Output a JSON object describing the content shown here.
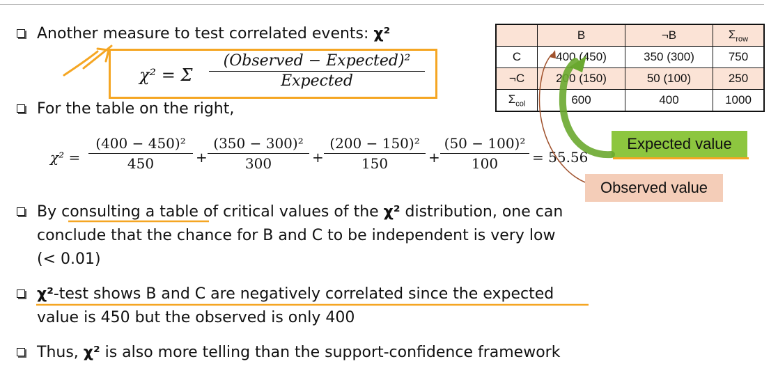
{
  "bullets": {
    "b1": {
      "text": "Another measure to test correlated events: ",
      "sym": "χ²"
    },
    "b2": {
      "text": "For the table on the right,"
    },
    "b3": {
      "line1_pre": "By consulting a table of critical values of the ",
      "sym": "χ²",
      "line1_post": " distribution, one can",
      "line2": "conclude that the chance for B and C  to be independent is very low",
      "line3": "(< 0.01)"
    },
    "b4": {
      "sym": "χ²",
      "line1": "-test shows B and C are negatively correlated since the expected",
      "line2": "value is 450 but the observed is only 400"
    },
    "b5": {
      "pre": "Thus, ",
      "sym": "χ²",
      "post": "  is also more telling than the support-confidence framework"
    }
  },
  "formula": {
    "lhs": "χ² = Σ",
    "numerator": "(Observed − Expected)²",
    "denominator": "Expected"
  },
  "calc": {
    "lhs": "χ² =",
    "terms": [
      {
        "num": "(400 − 450)²",
        "den": "450"
      },
      {
        "num": "(350 − 300)²",
        "den": "300"
      },
      {
        "num": "(200 − 150)²",
        "den": "150"
      },
      {
        "num": "(50 − 100)²",
        "den": "100"
      }
    ],
    "plus": "+",
    "result": "= 55.56"
  },
  "table": {
    "header": [
      "",
      "B",
      "¬B",
      "Σ",
      "row"
    ],
    "rows": [
      {
        "label": "C",
        "cells": [
          "400 (450)",
          "350 (300)",
          "750"
        ]
      },
      {
        "label": "¬C",
        "cells": [
          "200 (150)",
          "50 (100)",
          "250"
        ]
      },
      {
        "label": "Σ",
        "sub": "col",
        "cells": [
          "600",
          "400",
          "1000"
        ]
      }
    ]
  },
  "callouts": {
    "expected": "Expected value",
    "observed": "Observed value"
  },
  "colors": {
    "highlight_orange": "#f5a623",
    "pink_fill": "#fbe3d6",
    "green_fill": "#8dc63f",
    "observed_fill": "#f4cdb8"
  }
}
